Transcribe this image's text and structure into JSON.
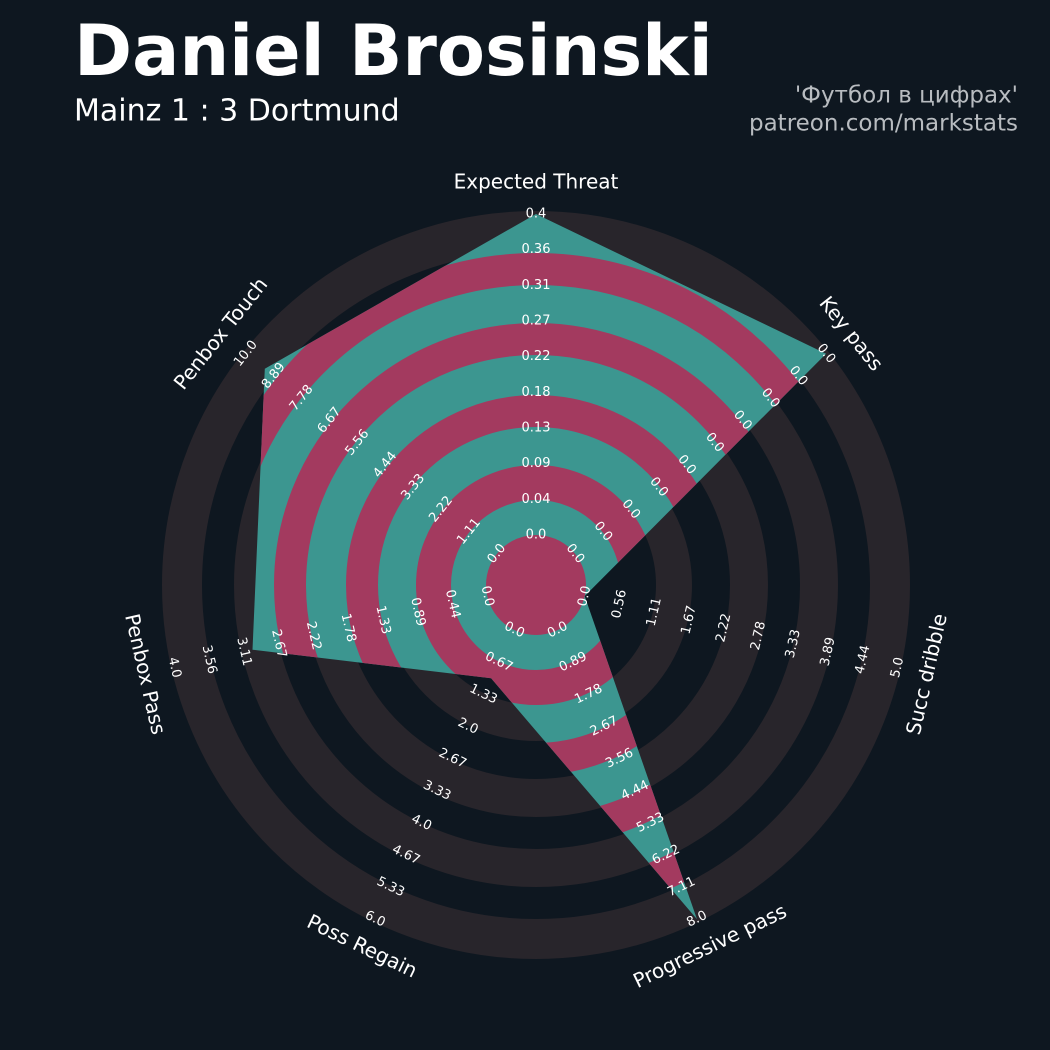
{
  "chart_data": {
    "type": "radar",
    "title": "Daniel Brosinski",
    "subtitle": "Mainz 1 : 3 Dortmund",
    "credits": [
      "'Футбол в цифрах'",
      "patreon.com/markstats"
    ],
    "params": [
      "Expected Threat",
      "Key pass",
      "Succ dribble",
      "Progressive pass",
      "Poss Regain",
      "Penbox Pass",
      "Penbox Touch"
    ],
    "values": [
      0.4,
      0,
      0,
      8,
      1,
      3,
      9.25
    ],
    "ranges": [
      [
        0,
        0.4
      ],
      [
        0,
        0
      ],
      [
        0,
        5
      ],
      [
        0,
        8
      ],
      [
        0,
        6
      ],
      [
        0,
        4
      ],
      [
        0,
        10
      ]
    ],
    "ticks": [
      [
        {
          "value": 0,
          "label": "0.0"
        },
        0.04,
        0.09,
        0.13,
        0.18,
        0.22,
        0.27,
        0.31,
        0.36,
        0.4
      ],
      [
        {
          "value": 0,
          "label": "0.0"
        },
        {
          "value": 0,
          "label": "0.0"
        },
        {
          "value": 0,
          "label": "0.0"
        },
        {
          "value": 0,
          "label": "0.0"
        },
        {
          "value": 0,
          "label": "0.0"
        },
        {
          "value": 0,
          "label": "0.0"
        },
        {
          "value": 0,
          "label": "0.0"
        },
        {
          "value": 0,
          "label": "0.0"
        },
        {
          "value": 0,
          "label": "0.0"
        },
        {
          "value": 0,
          "label": "0.0"
        }
      ],
      [
        {
          "value": 0,
          "label": "0.0"
        },
        0.56,
        1.11,
        1.67,
        2.22,
        2.78,
        3.33,
        3.89,
        4.44,
        {
          "value": 5,
          "label": "5.0"
        }
      ],
      [
        {
          "value": 0,
          "label": "0.0"
        },
        0.89,
        1.78,
        2.67,
        3.56,
        4.44,
        5.33,
        6.22,
        7.11,
        {
          "value": 8,
          "label": "8.0"
        }
      ],
      [
        {
          "value": 0,
          "label": "0.0"
        },
        0.67,
        1.33,
        {
          "value": 2,
          "label": "2.0"
        },
        2.67,
        3.33,
        {
          "value": 4,
          "label": "4.0"
        },
        4.67,
        5.33,
        {
          "value": 6,
          "label": "6.0"
        }
      ],
      [
        {
          "value": 0,
          "label": "0.0"
        },
        0.44,
        0.89,
        1.33,
        1.78,
        2.22,
        2.67,
        3.11,
        3.56,
        {
          "value": 4,
          "label": "4.0"
        }
      ],
      [
        {
          "value": 0,
          "label": "0.0"
        },
        1.11,
        2.22,
        3.33,
        4.44,
        5.56,
        6.67,
        7.78,
        8.89,
        {
          "value": 10,
          "label": "10.0"
        }
      ]
    ],
    "colors": {
      "background": "#0e1720",
      "rings": "#28252b",
      "polygon": "#3c9690",
      "polygon_rings": "#a33a5f"
    }
  }
}
